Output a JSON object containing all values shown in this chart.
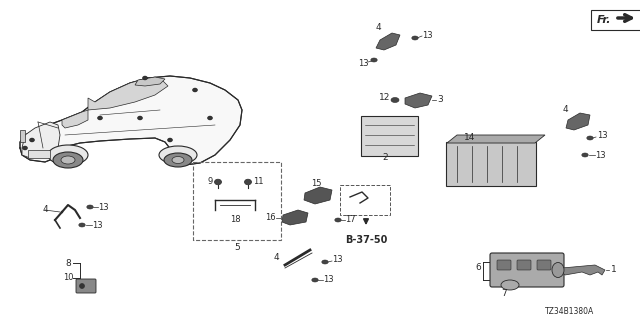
{
  "part_number": "TZ34B1380A",
  "background_color": "#ffffff",
  "fig_width": 6.4,
  "fig_height": 3.2,
  "dpi": 100
}
